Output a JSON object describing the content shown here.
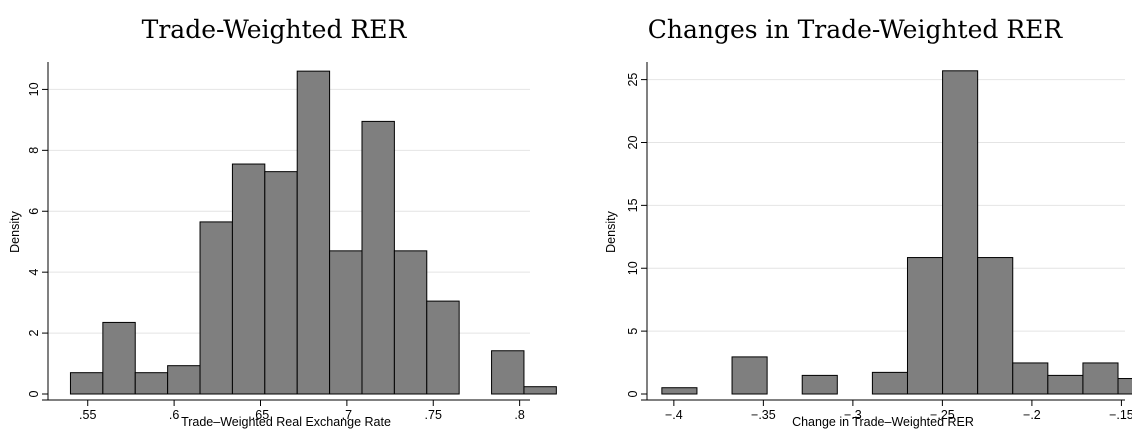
{
  "chart_data": [
    {
      "type": "bar",
      "title": "Trade-Weighted RER",
      "xlabel": "Trade–Weighted Real Exchange Rate",
      "ylabel": "Density",
      "bin_width": 0.01875,
      "bins": [
        {
          "start": 0.54,
          "value": 0.7
        },
        {
          "start": 0.55875,
          "value": 2.35
        },
        {
          "start": 0.5775,
          "value": 0.7
        },
        {
          "start": 0.59625,
          "value": 0.93
        },
        {
          "start": 0.615,
          "value": 5.65
        },
        {
          "start": 0.63375,
          "value": 7.55
        },
        {
          "start": 0.6525,
          "value": 7.3
        },
        {
          "start": 0.67125,
          "value": 10.6
        },
        {
          "start": 0.69,
          "value": 4.7
        },
        {
          "start": 0.70875,
          "value": 8.95
        },
        {
          "start": 0.7275,
          "value": 4.7
        },
        {
          "start": 0.74625,
          "value": 3.05
        },
        {
          "start": 0.765,
          "value": 0
        },
        {
          "start": 0.78375,
          "value": 1.42
        },
        {
          "start": 0.8025,
          "value": 0.24
        }
      ],
      "xlim": [
        0.527,
        0.806
      ],
      "ylim": [
        0,
        10.9
      ],
      "xticks": [
        {
          "value": 0.55,
          "label": ".55"
        },
        {
          "value": 0.6,
          "label": ".6"
        },
        {
          "value": 0.65,
          "label": ".65"
        },
        {
          "value": 0.7,
          "label": ".7"
        },
        {
          "value": 0.75,
          "label": ".75"
        },
        {
          "value": 0.8,
          "label": ".8"
        }
      ],
      "yticks": [
        {
          "value": 0,
          "label": "0"
        },
        {
          "value": 2,
          "label": "2"
        },
        {
          "value": 4,
          "label": "4"
        },
        {
          "value": 6,
          "label": "6"
        },
        {
          "value": 8,
          "label": "8"
        },
        {
          "value": 10,
          "label": "10"
        }
      ],
      "grid": true,
      "bar_color": "#7f7f7f"
    },
    {
      "type": "bar",
      "title": "Changes in Trade-Weighted RER",
      "xlabel": "Change in Trade–Weighted RER",
      "ylabel": "Density",
      "bin_width": 0.0196,
      "bins": [
        {
          "start": -0.4067,
          "value": 0.5
        },
        {
          "start": -0.3871,
          "value": 0
        },
        {
          "start": -0.3675,
          "value": 2.95
        },
        {
          "start": -0.3479,
          "value": 0
        },
        {
          "start": -0.3283,
          "value": 1.48
        },
        {
          "start": -0.3087,
          "value": 0
        },
        {
          "start": -0.2891,
          "value": 1.72
        },
        {
          "start": -0.2695,
          "value": 10.85
        },
        {
          "start": -0.2499,
          "value": 25.7
        },
        {
          "start": -0.2303,
          "value": 10.85
        },
        {
          "start": -0.2107,
          "value": 2.47
        },
        {
          "start": -0.1911,
          "value": 1.48
        },
        {
          "start": -0.1715,
          "value": 2.47
        },
        {
          "start": -0.1519,
          "value": 1.23
        }
      ],
      "xlim": [
        -0.415,
        -0.148
      ],
      "ylim": [
        0,
        26.4
      ],
      "xticks": [
        {
          "value": -0.4,
          "label": "−.4"
        },
        {
          "value": -0.35,
          "label": "−.35"
        },
        {
          "value": -0.3,
          "label": "−.3"
        },
        {
          "value": -0.25,
          "label": "−.25"
        },
        {
          "value": -0.2,
          "label": "−.2"
        },
        {
          "value": -0.15,
          "label": "−.15"
        }
      ],
      "yticks": [
        {
          "value": 0,
          "label": "0"
        },
        {
          "value": 5,
          "label": "5"
        },
        {
          "value": 10,
          "label": "10"
        },
        {
          "value": 15,
          "label": "15"
        },
        {
          "value": 20,
          "label": "20"
        },
        {
          "value": 25,
          "label": "25"
        }
      ],
      "grid": true,
      "bar_color": "#7f7f7f"
    }
  ]
}
